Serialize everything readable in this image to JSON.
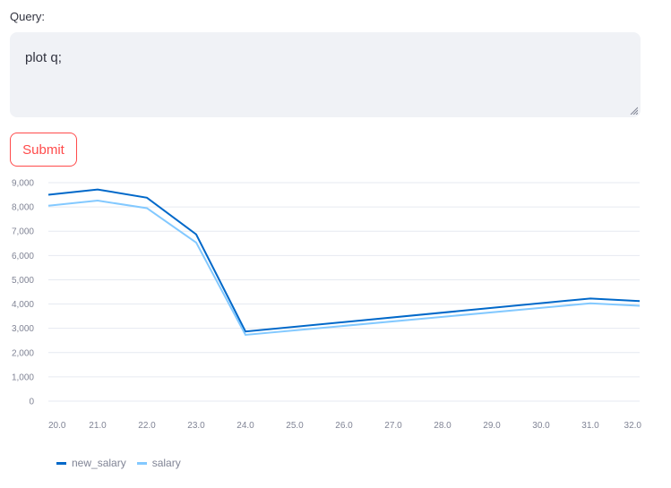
{
  "query": {
    "label": "Query:",
    "value": "plot q;"
  },
  "submit": {
    "label": "Submit"
  },
  "colors": {
    "accent": "#ff4b4b",
    "new_salary": "#0068c9",
    "salary": "#83c9ff"
  },
  "chart_data": {
    "type": "line",
    "x": [
      20,
      21,
      22,
      23,
      24,
      31,
      32
    ],
    "xticks": [
      "20.0",
      "21.0",
      "22.0",
      "23.0",
      "24.0",
      "25.0",
      "26.0",
      "27.0",
      "28.0",
      "29.0",
      "30.0",
      "31.0",
      "32.0"
    ],
    "yticks": [
      "0",
      "1,000",
      "2,000",
      "3,000",
      "4,000",
      "5,000",
      "6,000",
      "7,000",
      "8,000",
      "9,000"
    ],
    "ylim": [
      0,
      9000
    ],
    "xlim": [
      20,
      32
    ],
    "grid": true,
    "legend_position": "bottom-left",
    "series": [
      {
        "name": "new_salary",
        "values": [
          8500,
          8720,
          8380,
          6870,
          2870,
          4230,
          4120
        ]
      },
      {
        "name": "salary",
        "values": [
          8050,
          8260,
          7950,
          6530,
          2730,
          4030,
          3930
        ]
      }
    ]
  }
}
